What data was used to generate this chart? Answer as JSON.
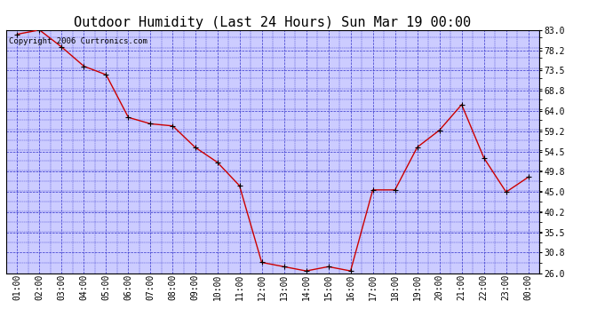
{
  "title": "Outdoor Humidity (Last 24 Hours) Sun Mar 19 00:00",
  "copyright": "Copyright 2006 Curtronics.com",
  "x_labels": [
    "01:00",
    "02:00",
    "03:00",
    "04:00",
    "05:00",
    "06:00",
    "07:00",
    "08:00",
    "09:00",
    "10:00",
    "11:00",
    "12:00",
    "13:00",
    "14:00",
    "15:00",
    "16:00",
    "17:00",
    "18:00",
    "19:00",
    "20:00",
    "21:00",
    "22:00",
    "23:00",
    "00:00"
  ],
  "data_x": [
    0,
    1,
    2,
    3,
    4,
    5,
    6,
    7,
    8,
    9,
    10,
    11,
    12,
    13,
    14,
    15,
    16,
    17,
    18,
    19,
    20,
    21,
    22,
    23
  ],
  "data_y": [
    82.0,
    83.0,
    79.0,
    74.5,
    72.5,
    62.5,
    61.0,
    60.5,
    55.5,
    52.0,
    46.5,
    28.5,
    27.5,
    26.5,
    27.5,
    26.5,
    45.5,
    45.5,
    55.5,
    59.5,
    65.5,
    53.0,
    45.0,
    48.5
  ],
  "ylim": [
    26.0,
    83.0
  ],
  "yticks": [
    83.0,
    78.2,
    73.5,
    68.8,
    64.0,
    59.2,
    54.5,
    49.8,
    45.0,
    40.2,
    35.5,
    30.8,
    26.0
  ],
  "bg_color": "#ccccff",
  "line_color": "#cc0000",
  "marker_color": "#000000",
  "grid_color": "#3333cc",
  "title_fontsize": 11,
  "tick_fontsize": 7,
  "copyright_fontsize": 6.5
}
